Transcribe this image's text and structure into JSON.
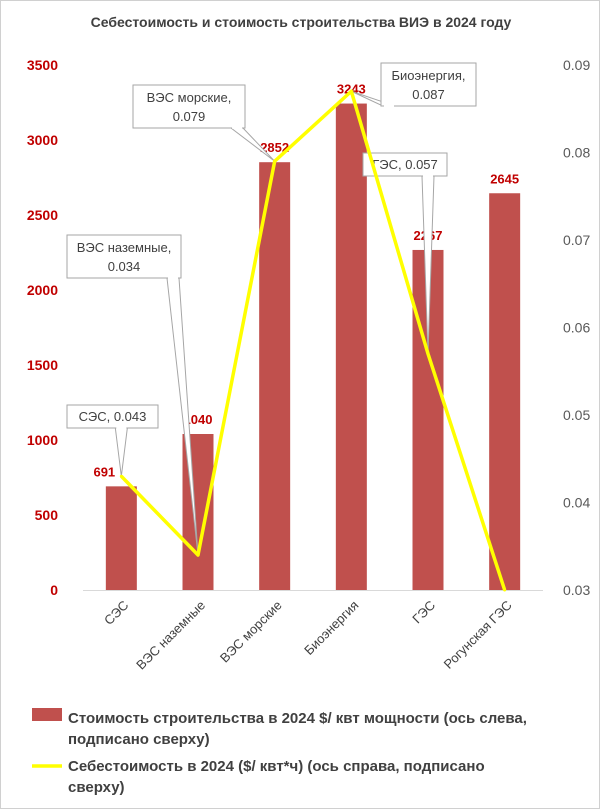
{
  "chart_data": {
    "type": "bar",
    "title": "Себестоимость и стоимость строительства ВИЭ в 2024 году",
    "categories": [
      "СЭС",
      "ВЭС наземные",
      "ВЭС морские",
      "Биоэнергия",
      "ГЭС",
      "Рогунская ГЭС"
    ],
    "series": [
      {
        "name": "Стоимость строительства в 2024 $/ квт мощности (ось слева, подписано сверху)",
        "type": "bar",
        "axis": "left",
        "color": "#c0504d",
        "values": [
          691,
          1040,
          2852,
          3243,
          2267,
          2645
        ],
        "labels": [
          "691",
          "1040",
          "2852",
          "3243",
          "2267",
          "2645"
        ]
      },
      {
        "name": "Себестоимость в 2024 ($/ квт*ч) (ось справа,  подписано сверху)",
        "type": "line",
        "axis": "right",
        "color": "#ffff00",
        "values": [
          0.043,
          0.034,
          0.079,
          0.087,
          0.057,
          0.03
        ],
        "labels": [
          "СЭС, 0.043",
          "ВЭС наземные, 0.034",
          "ВЭС морские, 0.079",
          "Биоэнергия, 0.087",
          "ГЭС, 0.057",
          ""
        ]
      }
    ],
    "y_left": {
      "min": 0,
      "max": 3500,
      "ticks": [
        "0",
        "500",
        "1000",
        "1500",
        "2000",
        "2500",
        "3000",
        "3500"
      ]
    },
    "y_right": {
      "min": 0.03,
      "max": 0.09,
      "ticks": [
        "0.03",
        "0.04",
        "0.05",
        "0.06",
        "0.07",
        "0.08",
        "0.09"
      ]
    },
    "grid": false,
    "legend": "bottom"
  }
}
